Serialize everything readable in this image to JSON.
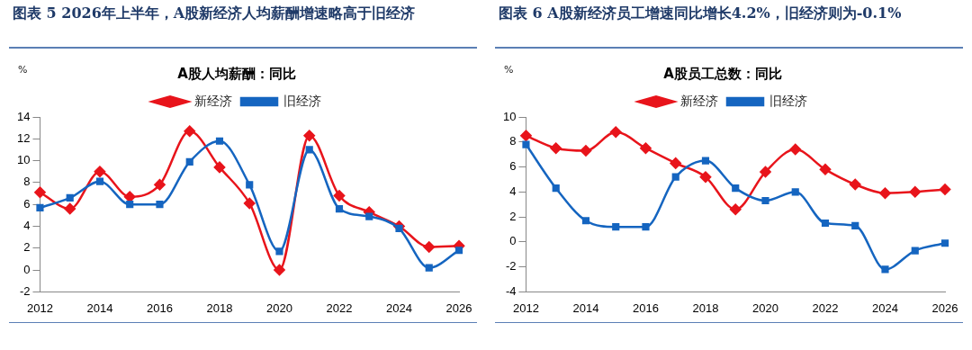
{
  "chart_data": [
    {
      "type": "line",
      "title": "图表 5 2026年上半年，A股新经济人均薪酬增速略高于旧经济",
      "subtitle": "A股人均薪酬：同比",
      "ylabel": "%",
      "categories": [
        "2012",
        null,
        "2014",
        null,
        "2016",
        null,
        "2018",
        null,
        "2020",
        null,
        "2022",
        null,
        "2024",
        null,
        "2026"
      ],
      "series": [
        {
          "name": "新经济",
          "color": "#e8141b",
          "marker": "diamond",
          "values": [
            7.1,
            5.6,
            9.0,
            6.7,
            7.8,
            12.7,
            9.4,
            6.1,
            0.0,
            12.3,
            6.8,
            5.3,
            4.0,
            2.1,
            2.2
          ]
        },
        {
          "name": "旧经济",
          "color": "#1565c0",
          "marker": "square",
          "values": [
            5.7,
            6.6,
            8.1,
            6.0,
            6.0,
            9.9,
            11.8,
            7.8,
            1.7,
            11.0,
            5.6,
            4.9,
            3.8,
            0.2,
            1.8
          ]
        }
      ],
      "ylim": [
        -2,
        14
      ],
      "yticks": [
        -2,
        0,
        2,
        4,
        6,
        8,
        10,
        12,
        14
      ],
      "grid": false,
      "legend": "top"
    },
    {
      "type": "line",
      "title": "图表 6 A股新经济员工增速同比增长4.2%，旧经济则为-0.1%",
      "subtitle": "A股员工总数：同比",
      "ylabel": "%",
      "categories": [
        "2012",
        null,
        "2014",
        null,
        "2016",
        null,
        "2018",
        null,
        "2020",
        null,
        "2022",
        null,
        "2024",
        null,
        "2026"
      ],
      "series": [
        {
          "name": "新经济",
          "color": "#e8141b",
          "marker": "diamond",
          "values": [
            8.5,
            7.5,
            7.3,
            8.8,
            7.5,
            6.3,
            5.2,
            2.6,
            5.6,
            7.4,
            5.8,
            4.6,
            3.9,
            4.0,
            4.2
          ]
        },
        {
          "name": "旧经济",
          "color": "#1565c0",
          "marker": "square",
          "values": [
            7.8,
            4.3,
            1.7,
            1.2,
            1.2,
            5.2,
            6.5,
            4.3,
            3.3,
            4.0,
            1.5,
            1.3,
            -2.2,
            -0.7,
            -0.1
          ]
        }
      ],
      "ylim": [
        -4,
        10
      ],
      "yticks": [
        -4,
        -2,
        0,
        2,
        4,
        6,
        8,
        10
      ],
      "grid": false,
      "legend": "top"
    }
  ]
}
